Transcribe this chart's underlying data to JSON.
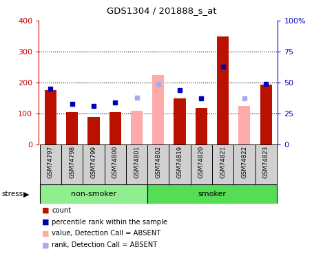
{
  "title": "GDS1304 / 201888_s_at",
  "samples": [
    "GSM74797",
    "GSM74798",
    "GSM74799",
    "GSM74800",
    "GSM74801",
    "GSM74802",
    "GSM74819",
    "GSM74820",
    "GSM74821",
    "GSM74822",
    "GSM74823"
  ],
  "groups": [
    {
      "label": "non-smoker",
      "indices": [
        0,
        1,
        2,
        3,
        4
      ],
      "color": "#90EE90"
    },
    {
      "label": "smoker",
      "indices": [
        5,
        6,
        7,
        8,
        9,
        10
      ],
      "color": "#55DD55"
    }
  ],
  "count_values": [
    175,
    105,
    90,
    105,
    null,
    null,
    148,
    118,
    350,
    null,
    193
  ],
  "rank_values": [
    45,
    33,
    31,
    34,
    null,
    null,
    44,
    37,
    63,
    null,
    49
  ],
  "count_absent": [
    null,
    null,
    null,
    null,
    108,
    225,
    null,
    null,
    null,
    125,
    null
  ],
  "rank_absent": [
    null,
    null,
    null,
    null,
    38,
    49,
    null,
    null,
    null,
    37,
    null
  ],
  "ylim_left": [
    0,
    400
  ],
  "left_ticks": [
    0,
    100,
    200,
    300,
    400
  ],
  "right_ticks": [
    0,
    25,
    50,
    75,
    100
  ],
  "right_tick_labels": [
    "0",
    "25",
    "50",
    "75",
    "100%"
  ],
  "bar_color": "#BB1100",
  "rank_color": "#0000BB",
  "absent_bar_color": "#FFAAAA",
  "absent_rank_color": "#AAAAEE",
  "left_axis_color": "#CC0000",
  "right_axis_color": "#0000CC",
  "bg_color": "#D0D0D0",
  "plot_bg": "#FFFFFF",
  "bar_width": 0.55,
  "rank_marker_size": 5,
  "legend_items": [
    {
      "color": "#BB1100",
      "label": "count"
    },
    {
      "color": "#0000BB",
      "label": "percentile rank within the sample"
    },
    {
      "color": "#FFAAAA",
      "label": "value, Detection Call = ABSENT"
    },
    {
      "color": "#AAAAEE",
      "label": "rank, Detection Call = ABSENT"
    }
  ]
}
